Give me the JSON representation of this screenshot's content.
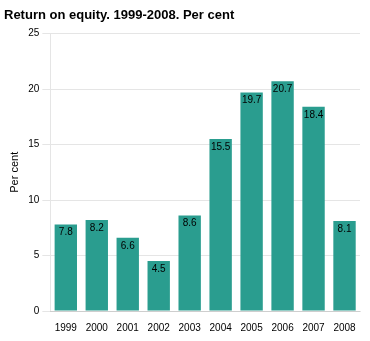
{
  "chart_data": {
    "type": "bar",
    "title": "Return on equity. 1999-2008. Per cent",
    "ylabel": "Per cent",
    "categories": [
      "1999",
      "2000",
      "2001",
      "2002",
      "2003",
      "2004",
      "2005",
      "2006",
      "2007",
      "2008"
    ],
    "values": [
      7.8,
      8.2,
      6.6,
      4.5,
      8.6,
      15.5,
      19.7,
      20.7,
      18.4,
      8.1
    ],
    "color": "#2a9d8f",
    "ylim": [
      0,
      25
    ],
    "yticks": [
      0,
      5,
      10,
      15,
      20,
      25
    ],
    "grid": true,
    "data_labels": true
  }
}
